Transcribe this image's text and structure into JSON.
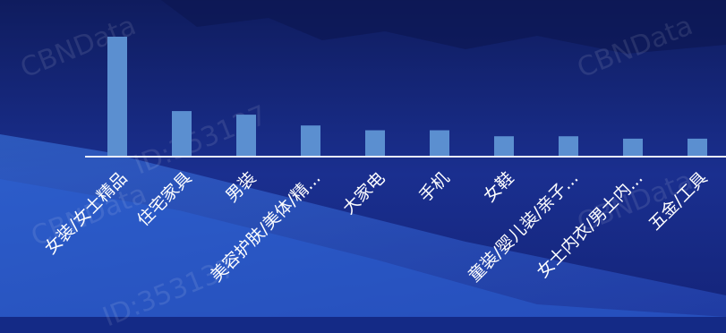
{
  "watermark": {
    "brand": "CBNData",
    "id_text": "ID:353137"
  },
  "colors": {
    "bar": "#5b8fd0",
    "axis": "#e8ecf8",
    "label": "#ffffff"
  },
  "chart_data": {
    "type": "bar",
    "title": "",
    "xlabel": "",
    "ylabel": "",
    "categories": [
      "女装/女士精品",
      "住宅家具",
      "男装",
      "美容护肤/美体/精...",
      "大家电",
      "手机",
      "女鞋",
      "童装/婴儿装/亲子...",
      "女士内衣/男士内...",
      "五金/工具"
    ],
    "values": [
      100,
      38,
      35,
      26,
      22,
      22,
      17,
      17,
      15,
      15
    ],
    "ylim": [
      0,
      100
    ],
    "grid": false,
    "legend": "none"
  }
}
